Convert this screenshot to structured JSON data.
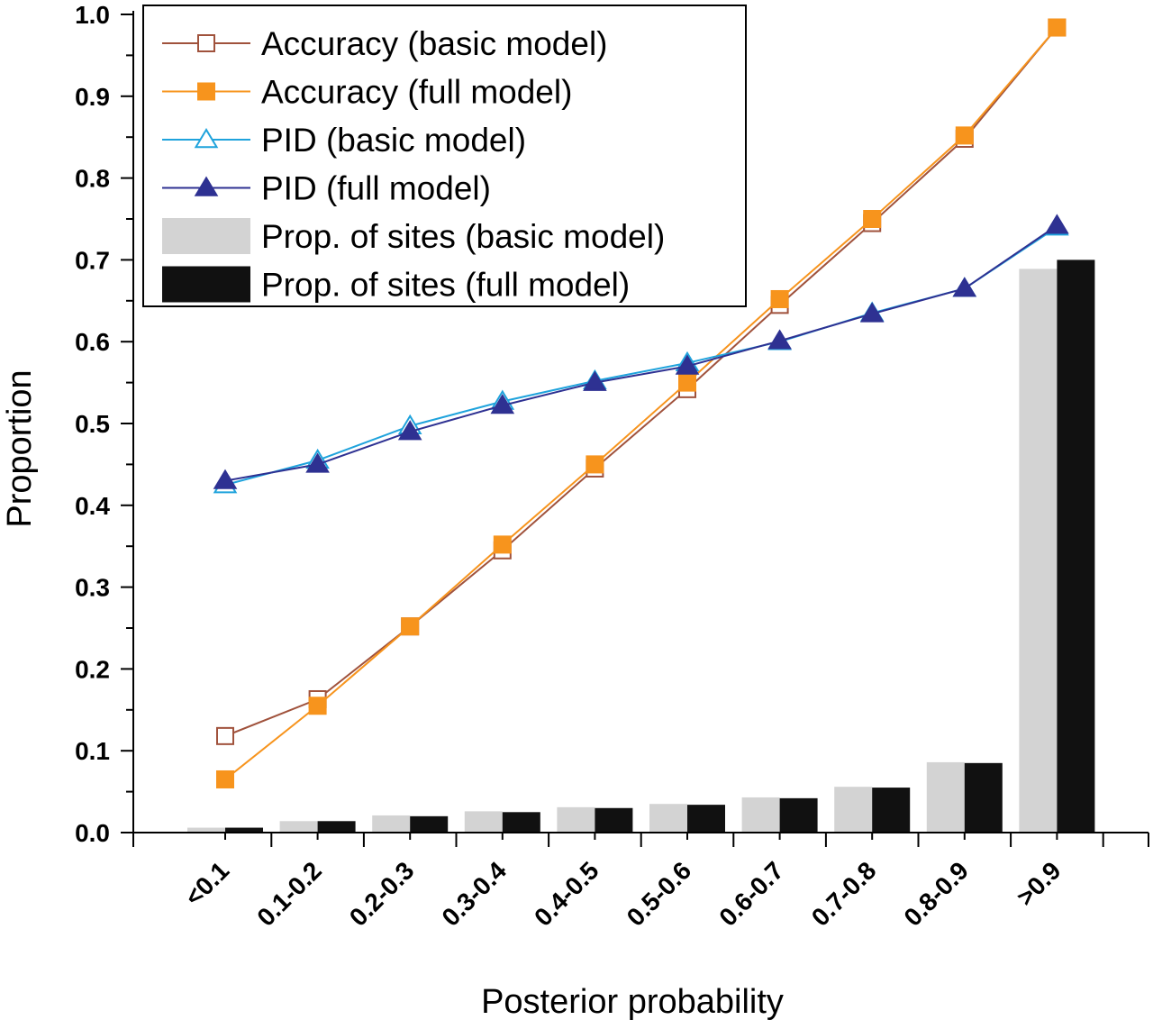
{
  "chart_data": {
    "type": "bar",
    "title": "",
    "xlabel": "Posterior probability",
    "ylabel": "Proportion",
    "ylim": [
      0,
      1.0
    ],
    "yticks": [
      "0.0",
      "0.1",
      "0.2",
      "0.3",
      "0.4",
      "0.5",
      "0.6",
      "0.7",
      "0.8",
      "0.9",
      "1.0"
    ],
    "categories": [
      "<0.1",
      "0.1-0.2",
      "0.2-0.3",
      "0.3-0.4",
      "0.4-0.5",
      "0.5-0.6",
      "0.6-0.7",
      "0.7-0.8",
      "0.8-0.9",
      ">0.9"
    ],
    "grid": false,
    "legend_position": "top-left",
    "bar_series": [
      {
        "name": "Prop. of sites (basic model)",
        "color": "#d3d3d3",
        "values": [
          0.006,
          0.014,
          0.021,
          0.026,
          0.031,
          0.035,
          0.043,
          0.056,
          0.086,
          0.689
        ]
      },
      {
        "name": "Prop. of sites (full model)",
        "color": "#111111",
        "values": [
          0.006,
          0.014,
          0.02,
          0.025,
          0.03,
          0.034,
          0.042,
          0.055,
          0.085,
          0.7
        ]
      }
    ],
    "line_series": [
      {
        "name": "Accuracy (basic model)",
        "color": "#a0523c",
        "marker": "hollow-square",
        "values": [
          0.118,
          0.163,
          0.252,
          0.345,
          0.445,
          0.542,
          0.645,
          0.745,
          0.848,
          0.984
        ]
      },
      {
        "name": "Accuracy (full model)",
        "color": "#f7941d",
        "marker": "filled-square",
        "values": [
          0.065,
          0.155,
          0.252,
          0.352,
          0.45,
          0.55,
          0.652,
          0.75,
          0.852,
          0.984
        ]
      },
      {
        "name": "PID (basic model)",
        "color": "#1fa3dc",
        "marker": "hollow-triangle",
        "values": [
          0.425,
          0.455,
          0.497,
          0.527,
          0.552,
          0.574,
          0.6,
          0.635,
          0.665,
          0.74
        ]
      },
      {
        "name": "PID (full model)",
        "color": "#2e3192",
        "marker": "filled-triangle",
        "values": [
          0.43,
          0.45,
          0.49,
          0.522,
          0.55,
          0.57,
          0.601,
          0.634,
          0.665,
          0.742
        ]
      }
    ],
    "legend_order": [
      "Accuracy (basic model)",
      "Accuracy (full model)",
      "PID (basic model)",
      "PID (full model)",
      "Prop. of sites (basic model)",
      "Prop. of sites (full model)"
    ]
  }
}
